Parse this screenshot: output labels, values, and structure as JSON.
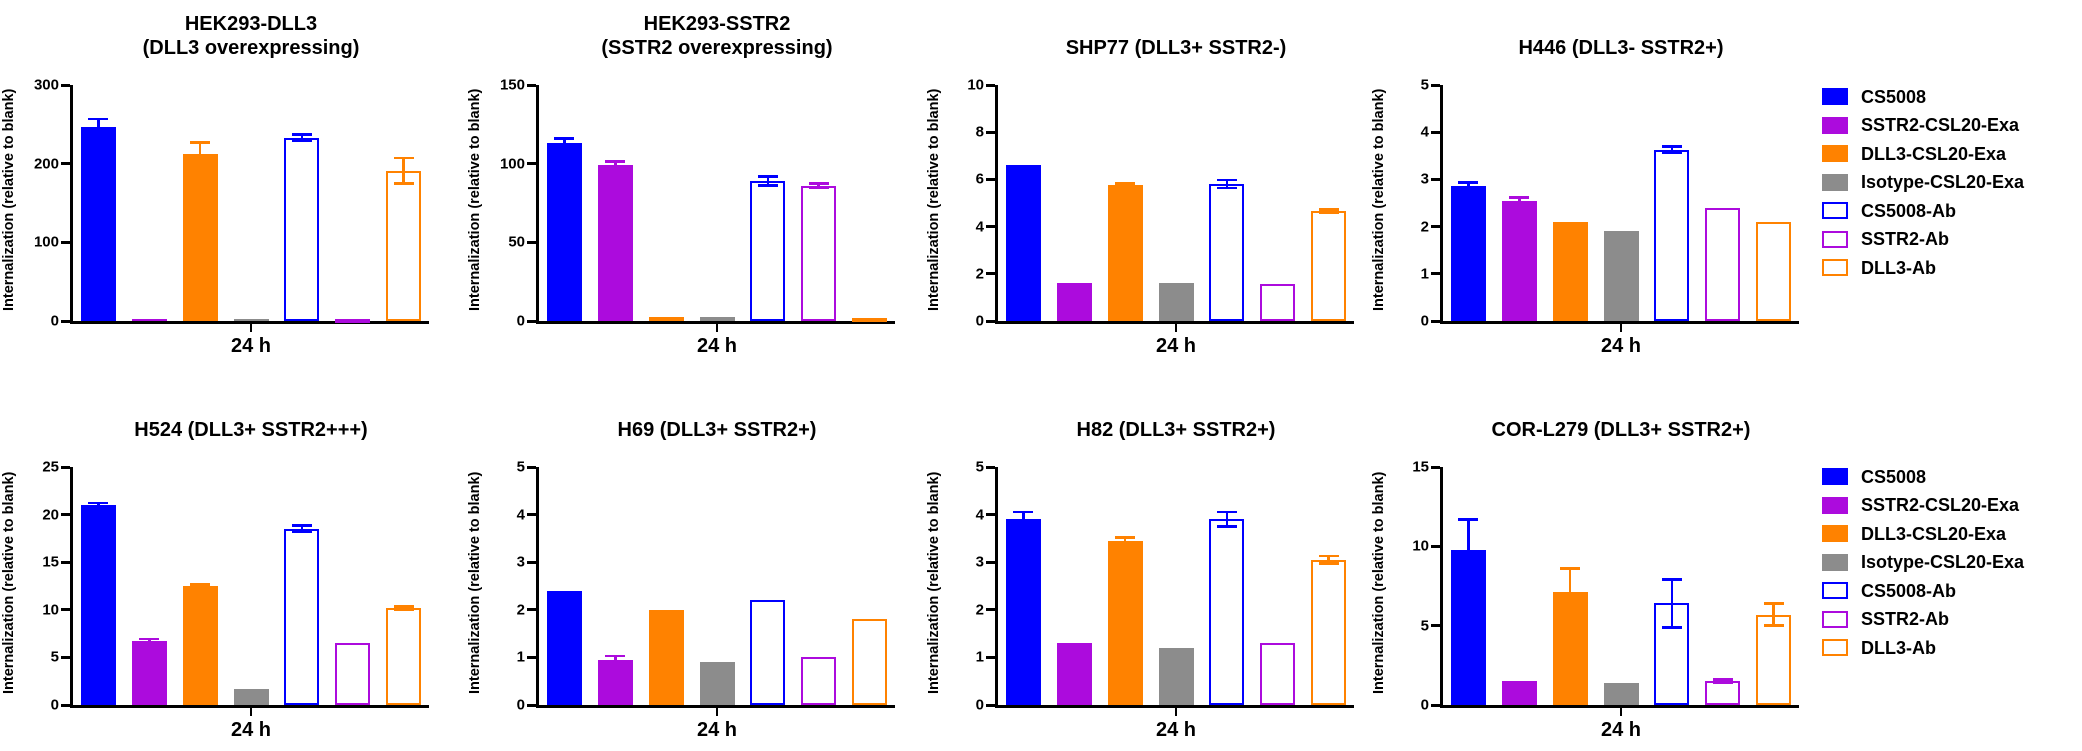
{
  "figure": {
    "ylabel": "Internalization (relative to blank)",
    "xlabel": "24 h"
  },
  "series": [
    {
      "name": "CS5008",
      "color": "#0000FF",
      "fill": "solid"
    },
    {
      "name": "SSTR2-CSL20-Exa",
      "color": "#AC0BDD",
      "fill": "solid"
    },
    {
      "name": "DLL3-CSL20-Exa",
      "color": "#FF8200",
      "fill": "solid"
    },
    {
      "name": "Isotype-CSL20-Exa",
      "color": "#8C8C8C",
      "fill": "solid"
    },
    {
      "name": "CS5008-Ab",
      "color": "#0000FF",
      "fill": "outline"
    },
    {
      "name": "SSTR2-Ab",
      "color": "#AC0BDD",
      "fill": "outline"
    },
    {
      "name": "DLL3-Ab",
      "color": "#FF8200",
      "fill": "outline"
    }
  ],
  "legend": {
    "labels": [
      "CS5008",
      "SSTR2-CSL20-Exa",
      "DLL3-CSL20-Exa",
      "Isotype-CSL20-Exa",
      "CS5008-Ab",
      "SSTR2-Ab",
      "DLL3-Ab"
    ]
  },
  "chart_data": [
    {
      "type": "bar",
      "title": "HEK293-DLL3",
      "subtitle": "(DLL3 overexpressing)",
      "xlabel": "24 h",
      "ylabel": "Internalization (relative to blank)",
      "ylim": [
        0,
        300
      ],
      "yticks": [
        0,
        100,
        200,
        300
      ],
      "categories": [
        "CS5008",
        "SSTR2-CSL20-Exa",
        "DLL3-CSL20-Exa",
        "Isotype-CSL20-Exa",
        "CS5008-Ab",
        "SSTR2-Ab",
        "DLL3-Ab"
      ],
      "values": [
        247,
        1.5,
        212,
        2.5,
        233,
        1.5,
        191
      ],
      "errors": [
        10,
        0,
        15,
        0,
        4,
        0,
        16
      ]
    },
    {
      "type": "bar",
      "title": "HEK293-SSTR2",
      "subtitle": "(SSTR2 overexpressing)",
      "xlabel": "24 h",
      "ylabel": "Internalization (relative to blank)",
      "ylim": [
        0,
        150
      ],
      "yticks": [
        0,
        50,
        100,
        150
      ],
      "categories": [
        "CS5008",
        "SSTR2-CSL20-Exa",
        "DLL3-CSL20-Exa",
        "Isotype-CSL20-Exa",
        "CS5008-Ab",
        "SSTR2-Ab",
        "DLL3-Ab"
      ],
      "values": [
        113,
        99,
        2.5,
        2.5,
        89,
        86,
        2
      ],
      "errors": [
        3,
        2.5,
        0,
        0,
        3,
        1.5,
        0
      ]
    },
    {
      "type": "bar",
      "title": "SHP77 (DLL3+ SSTR2-)",
      "subtitle": null,
      "xlabel": "24 h",
      "ylabel": "Internalization (relative to blank)",
      "ylim": [
        0,
        10
      ],
      "yticks": [
        0,
        2,
        4,
        6,
        8,
        10
      ],
      "categories": [
        "CS5008",
        "SSTR2-CSL20-Exa",
        "DLL3-CSL20-Exa",
        "Isotype-CSL20-Exa",
        "CS5008-Ab",
        "SSTR2-Ab",
        "DLL3-Ab"
      ],
      "values": [
        6.6,
        1.6,
        5.75,
        1.6,
        5.8,
        1.55,
        4.65
      ],
      "errors": [
        0,
        0,
        0.07,
        0,
        0.17,
        0,
        0.08
      ]
    },
    {
      "type": "bar",
      "title": "H446 (DLL3- SSTR2+)",
      "subtitle": null,
      "xlabel": "24 h",
      "ylabel": "Internalization (relative to blank)",
      "ylim": [
        0,
        5
      ],
      "yticks": [
        0,
        1,
        2,
        3,
        4,
        5
      ],
      "categories": [
        "CS5008",
        "SSTR2-CSL20-Exa",
        "DLL3-CSL20-Exa",
        "Isotype-CSL20-Exa",
        "CS5008-Ab",
        "SSTR2-Ab",
        "DLL3-Ab"
      ],
      "values": [
        2.85,
        2.55,
        2.1,
        1.9,
        3.63,
        2.4,
        2.1
      ],
      "errors": [
        0.08,
        0.07,
        0,
        0,
        0.07,
        0,
        0
      ]
    },
    {
      "type": "bar",
      "title": "H524 (DLL3+ SSTR2+++)",
      "subtitle": null,
      "xlabel": "24 h",
      "ylabel": "Internalization (relative to blank)",
      "ylim": [
        0,
        25
      ],
      "yticks": [
        0,
        5,
        10,
        15,
        20,
        25
      ],
      "categories": [
        "CS5008",
        "SSTR2-CSL20-Exa",
        "DLL3-CSL20-Exa",
        "Isotype-CSL20-Exa",
        "CS5008-Ab",
        "SSTR2-Ab",
        "DLL3-Ab"
      ],
      "values": [
        21,
        6.7,
        12.5,
        1.7,
        18.5,
        6.5,
        10.2
      ],
      "errors": [
        0.2,
        0.25,
        0.15,
        0,
        0.35,
        0,
        0.15
      ]
    },
    {
      "type": "bar",
      "title": "H69 (DLL3+ SSTR2+)",
      "subtitle": null,
      "xlabel": "24 h",
      "ylabel": "Internalization (relative to blank)",
      "ylim": [
        0,
        5
      ],
      "yticks": [
        0,
        1,
        2,
        3,
        4,
        5
      ],
      "categories": [
        "CS5008",
        "SSTR2-CSL20-Exa",
        "DLL3-CSL20-Exa",
        "Isotype-CSL20-Exa",
        "CS5008-Ab",
        "SSTR2-Ab",
        "DLL3-Ab"
      ],
      "values": [
        2.4,
        0.95,
        2.0,
        0.9,
        2.2,
        1.0,
        1.8
      ],
      "errors": [
        0,
        0.08,
        0,
        0,
        0,
        0,
        0
      ]
    },
    {
      "type": "bar",
      "title": "H82 (DLL3+ SSTR2+)",
      "subtitle": null,
      "xlabel": "24 h",
      "ylabel": "Internalization (relative to blank)",
      "ylim": [
        0,
        5
      ],
      "yticks": [
        0,
        1,
        2,
        3,
        4,
        5
      ],
      "categories": [
        "CS5008",
        "SSTR2-CSL20-Exa",
        "DLL3-CSL20-Exa",
        "Isotype-CSL20-Exa",
        "CS5008-Ab",
        "SSTR2-Ab",
        "DLL3-Ab"
      ],
      "values": [
        3.9,
        1.3,
        3.45,
        1.2,
        3.9,
        1.3,
        3.05
      ],
      "errors": [
        0.15,
        0,
        0.07,
        0,
        0.15,
        0,
        0.08
      ]
    },
    {
      "type": "bar",
      "title": "COR-L279 (DLL3+ SSTR2+)",
      "subtitle": null,
      "xlabel": "24 h",
      "ylabel": "Internalization (relative to blank)",
      "ylim": [
        0,
        15
      ],
      "yticks": [
        0,
        5,
        10,
        15
      ],
      "categories": [
        "CS5008",
        "SSTR2-CSL20-Exa",
        "DLL3-CSL20-Exa",
        "Isotype-CSL20-Exa",
        "CS5008-Ab",
        "SSTR2-Ab",
        "DLL3-Ab"
      ],
      "values": [
        9.8,
        1.5,
        7.1,
        1.4,
        6.4,
        1.5,
        5.7
      ],
      "errors": [
        1.9,
        0,
        1.5,
        0,
        1.5,
        0.12,
        0.7
      ]
    }
  ]
}
